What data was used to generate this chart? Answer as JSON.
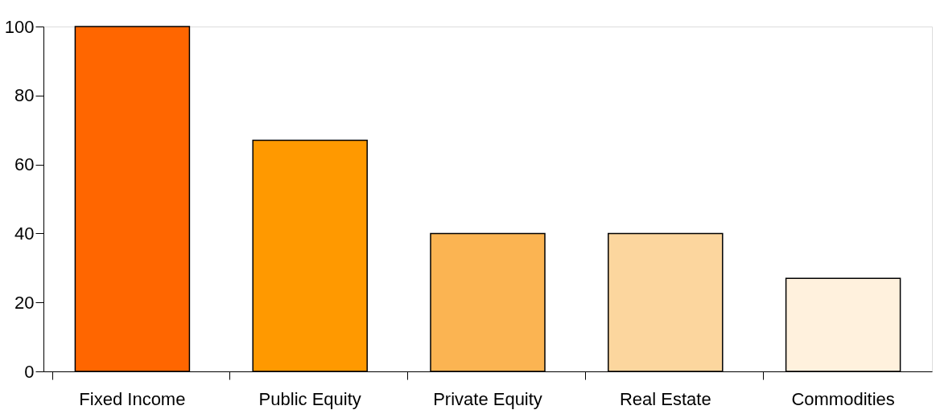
{
  "chart_data": {
    "type": "bar",
    "categories": [
      "Fixed Income",
      "Public Equity",
      "Private Equity",
      "Real Estate",
      "Commodities"
    ],
    "values": [
      100,
      67,
      40,
      40,
      27
    ],
    "colors": [
      "#ff6600",
      "#ff9900",
      "#fbb452",
      "#fcd69e",
      "#fff1dd"
    ],
    "ylim": [
      0,
      100
    ],
    "yticks": [
      0,
      20,
      40,
      60,
      80,
      100
    ],
    "grid": false
  }
}
